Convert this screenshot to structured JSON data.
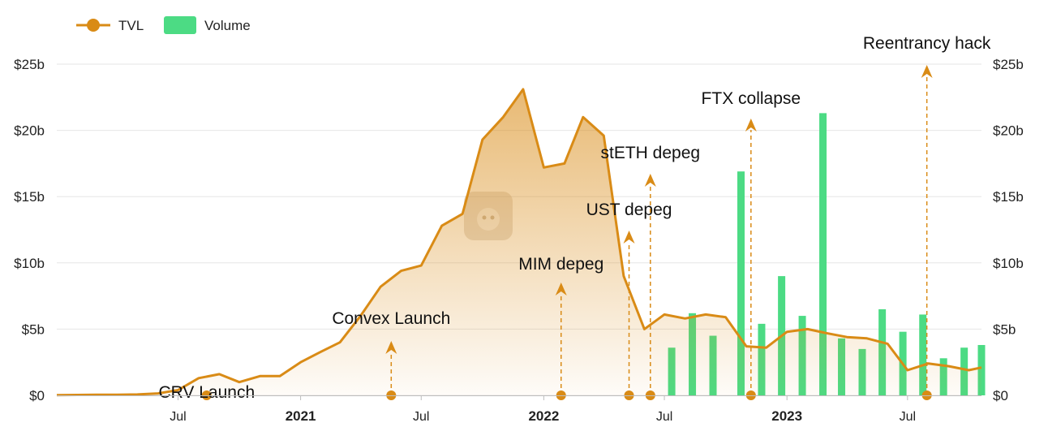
{
  "chart_data": {
    "type": "area",
    "colors": {
      "tvl": "#d98b16",
      "volume": "#4cdb84",
      "grid": "#e6e6e6",
      "annotation": "#d98b16"
    },
    "legend": {
      "position": "top-left",
      "items": [
        {
          "label": "TVL",
          "icon": "line-dot-icon"
        },
        {
          "label": "Volume",
          "icon": "bar-swatch-icon"
        }
      ]
    },
    "x_axis": {
      "range": [
        "2020-01-01",
        "2023-10-20"
      ],
      "ticks": [
        {
          "date": "2020-07-01",
          "label": "Jul",
          "bold": false
        },
        {
          "date": "2021-01-01",
          "label": "2021",
          "bold": true
        },
        {
          "date": "2021-07-01",
          "label": "Jul",
          "bold": false
        },
        {
          "date": "2022-01-01",
          "label": "2022",
          "bold": true
        },
        {
          "date": "2022-07-01",
          "label": "Jul",
          "bold": false
        },
        {
          "date": "2023-01-01",
          "label": "2023",
          "bold": true
        },
        {
          "date": "2023-07-01",
          "label": "Jul",
          "bold": false
        }
      ]
    },
    "y_axis": {
      "range": [
        0,
        25
      ],
      "unit": "billion USD",
      "grid": true,
      "ticks_left": [
        "$0",
        "$5b",
        "$10b",
        "$15b",
        "$20b",
        "$25b"
      ],
      "ticks_right": [
        "$0",
        "$5b",
        "$10b",
        "$15b",
        "$20b",
        "$25b"
      ]
    },
    "series": [
      {
        "name": "TVL",
        "type": "area",
        "points": [
          [
            "2020-01-01",
            0.02
          ],
          [
            "2020-02-01",
            0.03
          ],
          [
            "2020-03-01",
            0.04
          ],
          [
            "2020-04-01",
            0.05
          ],
          [
            "2020-05-01",
            0.07
          ],
          [
            "2020-06-01",
            0.15
          ],
          [
            "2020-07-01",
            0.4
          ],
          [
            "2020-08-01",
            1.3
          ],
          [
            "2020-09-01",
            1.6
          ],
          [
            "2020-10-01",
            1.0
          ],
          [
            "2020-11-01",
            1.45
          ],
          [
            "2020-12-01",
            1.45
          ],
          [
            "2021-01-01",
            2.5
          ],
          [
            "2021-02-01",
            3.3
          ],
          [
            "2021-03-01",
            4.0
          ],
          [
            "2021-04-01",
            6.0
          ],
          [
            "2021-05-01",
            8.2
          ],
          [
            "2021-06-01",
            9.4
          ],
          [
            "2021-07-01",
            9.8
          ],
          [
            "2021-08-01",
            12.8
          ],
          [
            "2021-09-01",
            13.7
          ],
          [
            "2021-10-01",
            19.3
          ],
          [
            "2021-11-01",
            21.0
          ],
          [
            "2021-12-01",
            23.1
          ],
          [
            "2022-01-01",
            17.2
          ],
          [
            "2022-02-01",
            17.5
          ],
          [
            "2022-03-01",
            21.0
          ],
          [
            "2022-04-01",
            19.6
          ],
          [
            "2022-05-01",
            9.0
          ],
          [
            "2022-06-01",
            5.0
          ],
          [
            "2022-07-01",
            6.1
          ],
          [
            "2022-08-01",
            5.8
          ],
          [
            "2022-09-01",
            6.1
          ],
          [
            "2022-10-01",
            5.9
          ],
          [
            "2022-11-01",
            3.7
          ],
          [
            "2022-12-01",
            3.6
          ],
          [
            "2023-01-01",
            4.8
          ],
          [
            "2023-02-01",
            5.0
          ],
          [
            "2023-03-01",
            4.7
          ],
          [
            "2023-04-01",
            4.4
          ],
          [
            "2023-05-01",
            4.3
          ],
          [
            "2023-06-01",
            3.9
          ],
          [
            "2023-07-01",
            1.9
          ],
          [
            "2023-08-01",
            2.4
          ],
          [
            "2023-09-01",
            2.2
          ],
          [
            "2023-10-01",
            1.9
          ],
          [
            "2023-10-20",
            2.1
          ]
        ]
      },
      {
        "name": "Volume",
        "type": "bar",
        "points": [
          [
            "2022-07-12",
            3.6
          ],
          [
            "2022-08-12",
            6.2
          ],
          [
            "2022-09-12",
            4.5
          ],
          [
            "2022-10-24",
            16.9
          ],
          [
            "2022-11-24",
            5.4
          ],
          [
            "2022-12-24",
            9.0
          ],
          [
            "2023-01-24",
            6.0
          ],
          [
            "2023-02-24",
            21.3
          ],
          [
            "2023-03-24",
            4.3
          ],
          [
            "2023-04-24",
            3.5
          ],
          [
            "2023-05-24",
            6.5
          ],
          [
            "2023-06-24",
            4.8
          ],
          [
            "2023-07-24",
            6.1
          ],
          [
            "2023-08-24",
            2.8
          ],
          [
            "2023-09-24",
            3.6
          ],
          [
            "2023-10-20",
            3.8
          ]
        ]
      }
    ],
    "annotations": [
      {
        "label": "CRV Launch",
        "date": "2020-08-13"
      },
      {
        "label": "Convex Launch",
        "date": "2021-05-17"
      },
      {
        "label": "MIM depeg",
        "date": "2022-01-27"
      },
      {
        "label": "UST depeg",
        "date": "2022-05-09"
      },
      {
        "label": "stETH depeg",
        "date": "2022-06-10"
      },
      {
        "label": "FTX collapse",
        "date": "2022-11-08"
      },
      {
        "label": "Reentrancy hack",
        "date": "2023-07-30"
      }
    ]
  }
}
